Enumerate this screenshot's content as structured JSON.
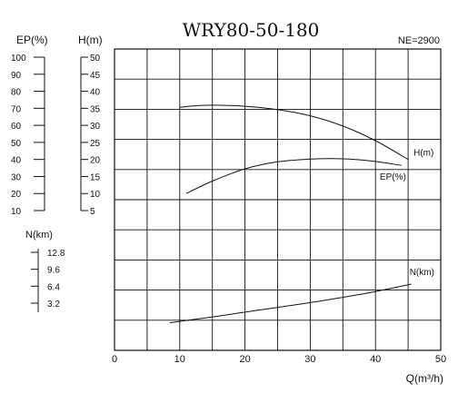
{
  "chart_data": {
    "type": "line",
    "title": "WRY80-50-180",
    "speed_label": "NE=2900",
    "xlabel": "Q(m³/h)",
    "xlim": [
      0,
      50
    ],
    "x_ticks": [
      0,
      10,
      20,
      30,
      40,
      50
    ],
    "grid": true,
    "left_axes": [
      {
        "label": "EP(%)",
        "ticks": [
          100,
          90,
          80,
          70,
          60,
          50,
          40,
          30,
          20,
          10
        ]
      },
      {
        "label": "H(m)",
        "ticks": [
          50,
          45,
          40,
          35,
          30,
          25,
          20,
          15,
          10,
          5
        ]
      },
      {
        "label": "N(km)",
        "ticks": [
          12.8,
          9.6,
          6.4,
          3.2
        ]
      }
    ],
    "series": [
      {
        "name": "H(m)",
        "unit_axis": "H(m)",
        "x": [
          10,
          13,
          16,
          20,
          25,
          30,
          35,
          40,
          45
        ],
        "y": [
          35.3,
          35.8,
          35.9,
          35.6,
          34.6,
          32.8,
          29.8,
          25.5,
          20.0
        ]
      },
      {
        "name": "EP(%)",
        "unit_axis": "EP(%)",
        "x": [
          11,
          15,
          20,
          25,
          30,
          33,
          36,
          40,
          44
        ],
        "y": [
          20,
          27.3,
          34.5,
          38.6,
          40.2,
          40.5,
          40.2,
          38.8,
          36.5
        ]
      },
      {
        "name": "N(km)",
        "unit_axis": "N(km)",
        "x": [
          8.5,
          15,
          20,
          25,
          30,
          35,
          40,
          45.5
        ],
        "y": [
          -0.5,
          0.6,
          1.5,
          2.4,
          3.3,
          4.3,
          5.4,
          6.8
        ]
      }
    ]
  }
}
